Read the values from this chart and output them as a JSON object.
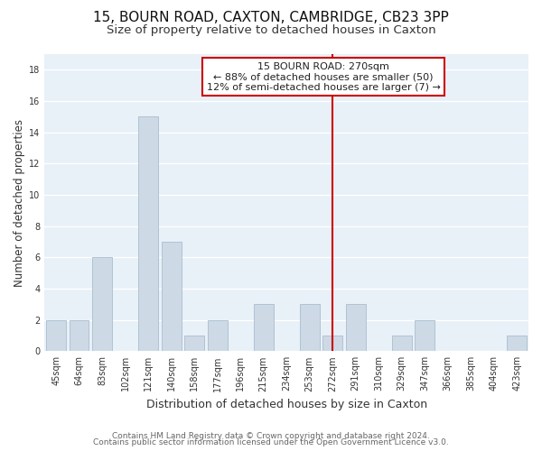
{
  "title": "15, BOURN ROAD, CAXTON, CAMBRIDGE, CB23 3PP",
  "subtitle": "Size of property relative to detached houses in Caxton",
  "xlabel": "Distribution of detached houses by size in Caxton",
  "ylabel": "Number of detached properties",
  "bar_color": "#cdd9e5",
  "bar_edge_color": "#b0c4d4",
  "categories": [
    "45sqm",
    "64sqm",
    "83sqm",
    "102sqm",
    "121sqm",
    "140sqm",
    "158sqm",
    "177sqm",
    "196sqm",
    "215sqm",
    "234sqm",
    "253sqm",
    "272sqm",
    "291sqm",
    "310sqm",
    "329sqm",
    "347sqm",
    "366sqm",
    "385sqm",
    "404sqm",
    "423sqm"
  ],
  "values": [
    2,
    2,
    6,
    0,
    15,
    7,
    1,
    2,
    0,
    3,
    0,
    3,
    1,
    3,
    0,
    1,
    2,
    0,
    0,
    0,
    1
  ],
  "ylim": [
    0,
    19
  ],
  "yticks": [
    0,
    2,
    4,
    6,
    8,
    10,
    12,
    14,
    16,
    18
  ],
  "vline_x_idx": 12,
  "vline_color": "#cc0000",
  "annotation_title": "15 BOURN ROAD: 270sqm",
  "annotation_line1": "← 88% of detached houses are smaller (50)",
  "annotation_line2": "12% of semi-detached houses are larger (7) →",
  "annotation_box_color": "#ffffff",
  "annotation_box_edge": "#cc0000",
  "footer1": "Contains HM Land Registry data © Crown copyright and database right 2024.",
  "footer2": "Contains public sector information licensed under the Open Government Licence v3.0.",
  "background_color": "#ffffff",
  "plot_bg_color": "#e8f0f8",
  "grid_color": "#ffffff",
  "title_fontsize": 11,
  "subtitle_fontsize": 9.5,
  "tick_fontsize": 7,
  "ylabel_fontsize": 8.5,
  "xlabel_fontsize": 9,
  "annotation_fontsize": 8,
  "footer_fontsize": 6.5
}
